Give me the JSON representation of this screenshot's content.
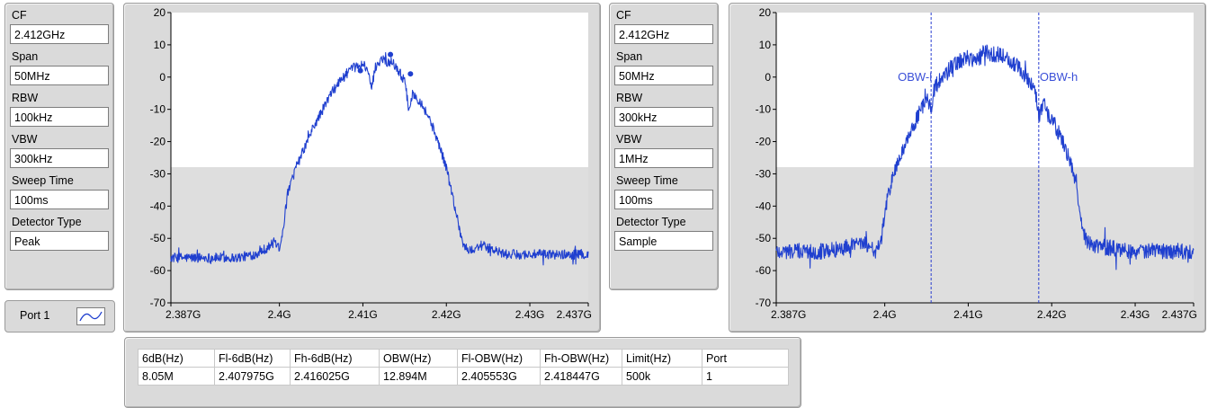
{
  "settings_left": {
    "cf_label": "CF",
    "cf_value": "2.412GHz",
    "span_label": "Span",
    "span_value": "50MHz",
    "rbw_label": "RBW",
    "rbw_value": "100kHz",
    "vbw_label": "VBW",
    "vbw_value": "300kHz",
    "sweep_label": "Sweep Time",
    "sweep_value": "100ms",
    "detector_label": "Detector Type",
    "detector_value": "Peak"
  },
  "settings_right": {
    "cf_label": "CF",
    "cf_value": "2.412GHz",
    "span_label": "Span",
    "span_value": "50MHz",
    "rbw_label": "RBW",
    "rbw_value": "300kHz",
    "vbw_label": "VBW",
    "vbw_value": "1MHz",
    "sweep_label": "Sweep Time",
    "sweep_value": "100ms",
    "detector_label": "Detector Type",
    "detector_value": "Sample"
  },
  "legend": {
    "port_label": "Port 1",
    "trace_color": "#1f3fcf"
  },
  "results_table": {
    "headers": [
      "6dB(Hz)",
      "Fl-6dB(Hz)",
      "Fh-6dB(Hz)",
      "OBW(Hz)",
      "Fl-OBW(Hz)",
      "Fh-OBW(Hz)",
      "Limit(Hz)",
      "Port"
    ],
    "rows": [
      [
        "8.05M",
        "2.407975G",
        "2.416025G",
        "12.894M",
        "2.405553G",
        "2.418447G",
        "500k",
        "1"
      ]
    ]
  },
  "chart_data": [
    {
      "type": "line",
      "title": "",
      "xlabel": "",
      "ylabel": "",
      "xlim": [
        2.387,
        2.437
      ],
      "ylim": [
        -70,
        20
      ],
      "x_ticks": [
        2.387,
        2.4,
        2.41,
        2.42,
        2.43,
        2.437
      ],
      "x_tick_labels": [
        "2.387G",
        "2.4G",
        "2.41G",
        "2.42G",
        "2.43G",
        "2.437G"
      ],
      "y_ticks": [
        20,
        10,
        0,
        -10,
        -20,
        -30,
        -40,
        -50,
        -60,
        -70
      ],
      "y_tick_labels": [
        "20",
        "10",
        "0",
        "-10",
        "-20",
        "-30",
        "-40",
        "-50",
        "-60",
        "-70"
      ],
      "grid": false,
      "series": [
        {
          "color": "#1f3fcf",
          "x": [
            2.387,
            2.39,
            2.393,
            2.395,
            2.397,
            2.3985,
            2.3995,
            2.4,
            2.4005,
            2.401,
            2.402,
            2.403,
            2.404,
            2.405,
            2.406,
            2.407,
            2.408,
            2.409,
            2.41,
            2.4105,
            2.411,
            2.4115,
            2.412,
            2.4125,
            2.413,
            2.4135,
            2.414,
            2.4145,
            2.415,
            2.4155,
            2.416,
            2.417,
            2.418,
            2.419,
            2.42,
            2.421,
            2.422,
            2.4228,
            2.4235,
            2.424,
            2.425,
            2.427,
            2.43,
            2.433,
            2.437
          ],
          "y": [
            -56,
            -56,
            -56,
            -56,
            -55,
            -53,
            -51,
            -53,
            -46,
            -36,
            -28,
            -22,
            -16,
            -11,
            -6,
            -2,
            1,
            3,
            4,
            3,
            -4,
            3,
            5,
            6,
            4,
            5,
            3,
            1,
            -1,
            -10,
            -5,
            -8,
            -13,
            -20,
            -28,
            -40,
            -52,
            -54,
            -53,
            -52,
            -53,
            -55,
            -55,
            -55,
            -55
          ],
          "noise": 1.5
        }
      ],
      "markers": [
        {
          "x": 2.4097,
          "y": 2
        },
        {
          "x": 2.4133,
          "y": 7
        },
        {
          "x": 2.4157,
          "y": 1
        }
      ]
    },
    {
      "type": "line",
      "title": "",
      "xlabel": "",
      "ylabel": "",
      "xlim": [
        2.387,
        2.437
      ],
      "ylim": [
        -70,
        20
      ],
      "x_ticks": [
        2.387,
        2.4,
        2.41,
        2.42,
        2.43,
        2.437
      ],
      "x_tick_labels": [
        "2.387G",
        "2.4G",
        "2.41G",
        "2.42G",
        "2.43G",
        "2.437G"
      ],
      "y_ticks": [
        20,
        10,
        0,
        -10,
        -20,
        -30,
        -40,
        -50,
        -60,
        -70
      ],
      "y_tick_labels": [
        "20",
        "10",
        "0",
        "-10",
        "-20",
        "-30",
        "-40",
        "-50",
        "-60",
        "-70"
      ],
      "grid": false,
      "series": [
        {
          "color": "#1f3fcf",
          "x": [
            2.387,
            2.39,
            2.393,
            2.395,
            2.396,
            2.397,
            2.398,
            2.399,
            2.3995,
            2.4,
            2.4005,
            2.401,
            2.402,
            2.403,
            2.404,
            2.405,
            2.4055,
            2.406,
            2.407,
            2.408,
            2.409,
            2.41,
            2.411,
            2.412,
            2.413,
            2.414,
            2.415,
            2.416,
            2.417,
            2.418,
            2.4185,
            2.419,
            2.42,
            2.421,
            2.422,
            2.423,
            2.4235,
            2.424,
            2.425,
            2.427,
            2.43,
            2.433,
            2.437
          ],
          "y": [
            -54,
            -54,
            -54,
            -53,
            -52,
            -51,
            -52,
            -54,
            -52,
            -42,
            -36,
            -30,
            -24,
            -18,
            -12,
            -7,
            -10,
            -3,
            0,
            3,
            5,
            6,
            5,
            8,
            7,
            7,
            5,
            3,
            0,
            -4,
            -12,
            -8,
            -13,
            -18,
            -25,
            -33,
            -45,
            -50,
            -52,
            -53,
            -54,
            -54,
            -54
          ],
          "noise": 2.5
        }
      ],
      "markers": [
        {
          "label": "OBW-l",
          "x": 2.405553
        },
        {
          "label": "OBW-h",
          "x": 2.418447
        }
      ]
    }
  ]
}
